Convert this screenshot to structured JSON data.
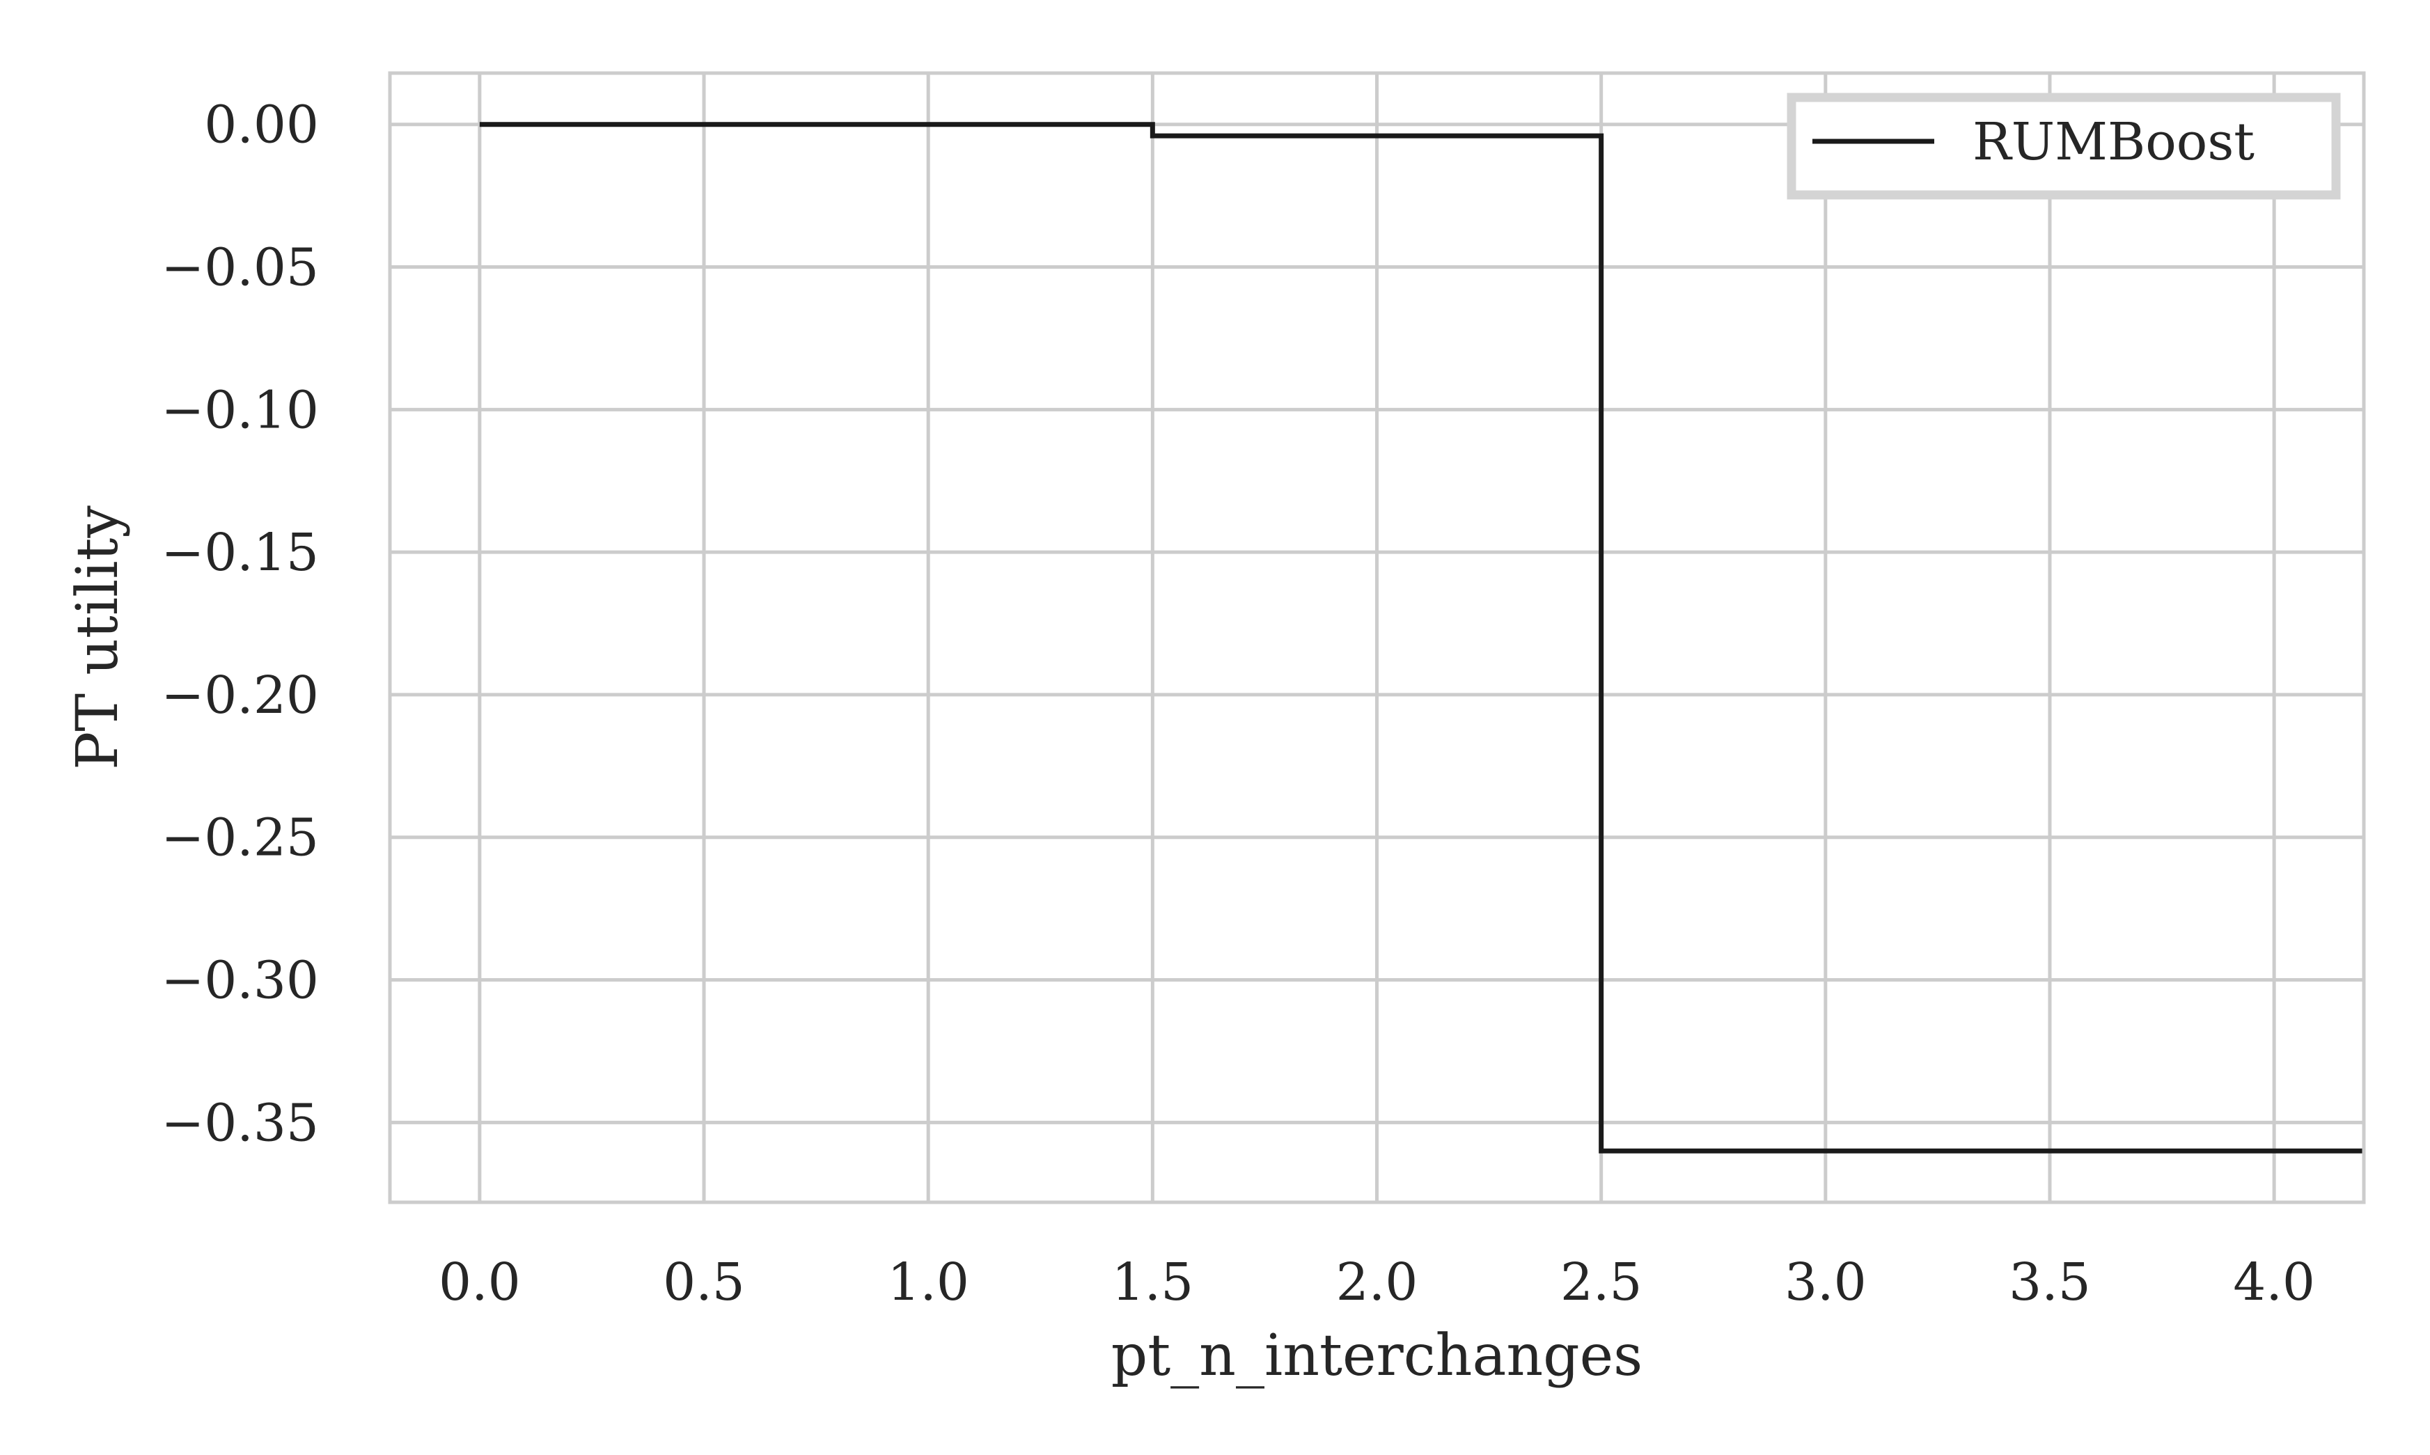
{
  "chart_data": {
    "type": "line",
    "step": "post",
    "title": "",
    "xlabel": "pt_n_interchanges",
    "ylabel": "PT utility",
    "xlim": [
      -0.2,
      4.2
    ],
    "ylim": [
      -0.378,
      0.018
    ],
    "xticks": [
      0.0,
      0.5,
      1.0,
      1.5,
      2.0,
      2.5,
      3.0,
      3.5,
      4.0
    ],
    "xtick_labels": [
      "0.0",
      "0.5",
      "1.0",
      "1.5",
      "2.0",
      "2.5",
      "3.0",
      "3.5",
      "4.0"
    ],
    "yticks": [
      0.0,
      -0.05,
      -0.1,
      -0.15,
      -0.2,
      -0.25,
      -0.3,
      -0.35
    ],
    "ytick_labels": [
      "0.00",
      "−0.05",
      "−0.10",
      "−0.15",
      "−0.20",
      "−0.25",
      "−0.30",
      "−0.35"
    ],
    "grid": true,
    "legend": "top-right",
    "series": [
      {
        "name": "RUMBoost",
        "color": "#1a1a1a",
        "x": [
          0.0,
          1.5,
          2.5,
          4.2
        ],
        "y": [
          0.0,
          -0.004,
          -0.36,
          -0.36
        ]
      }
    ]
  }
}
